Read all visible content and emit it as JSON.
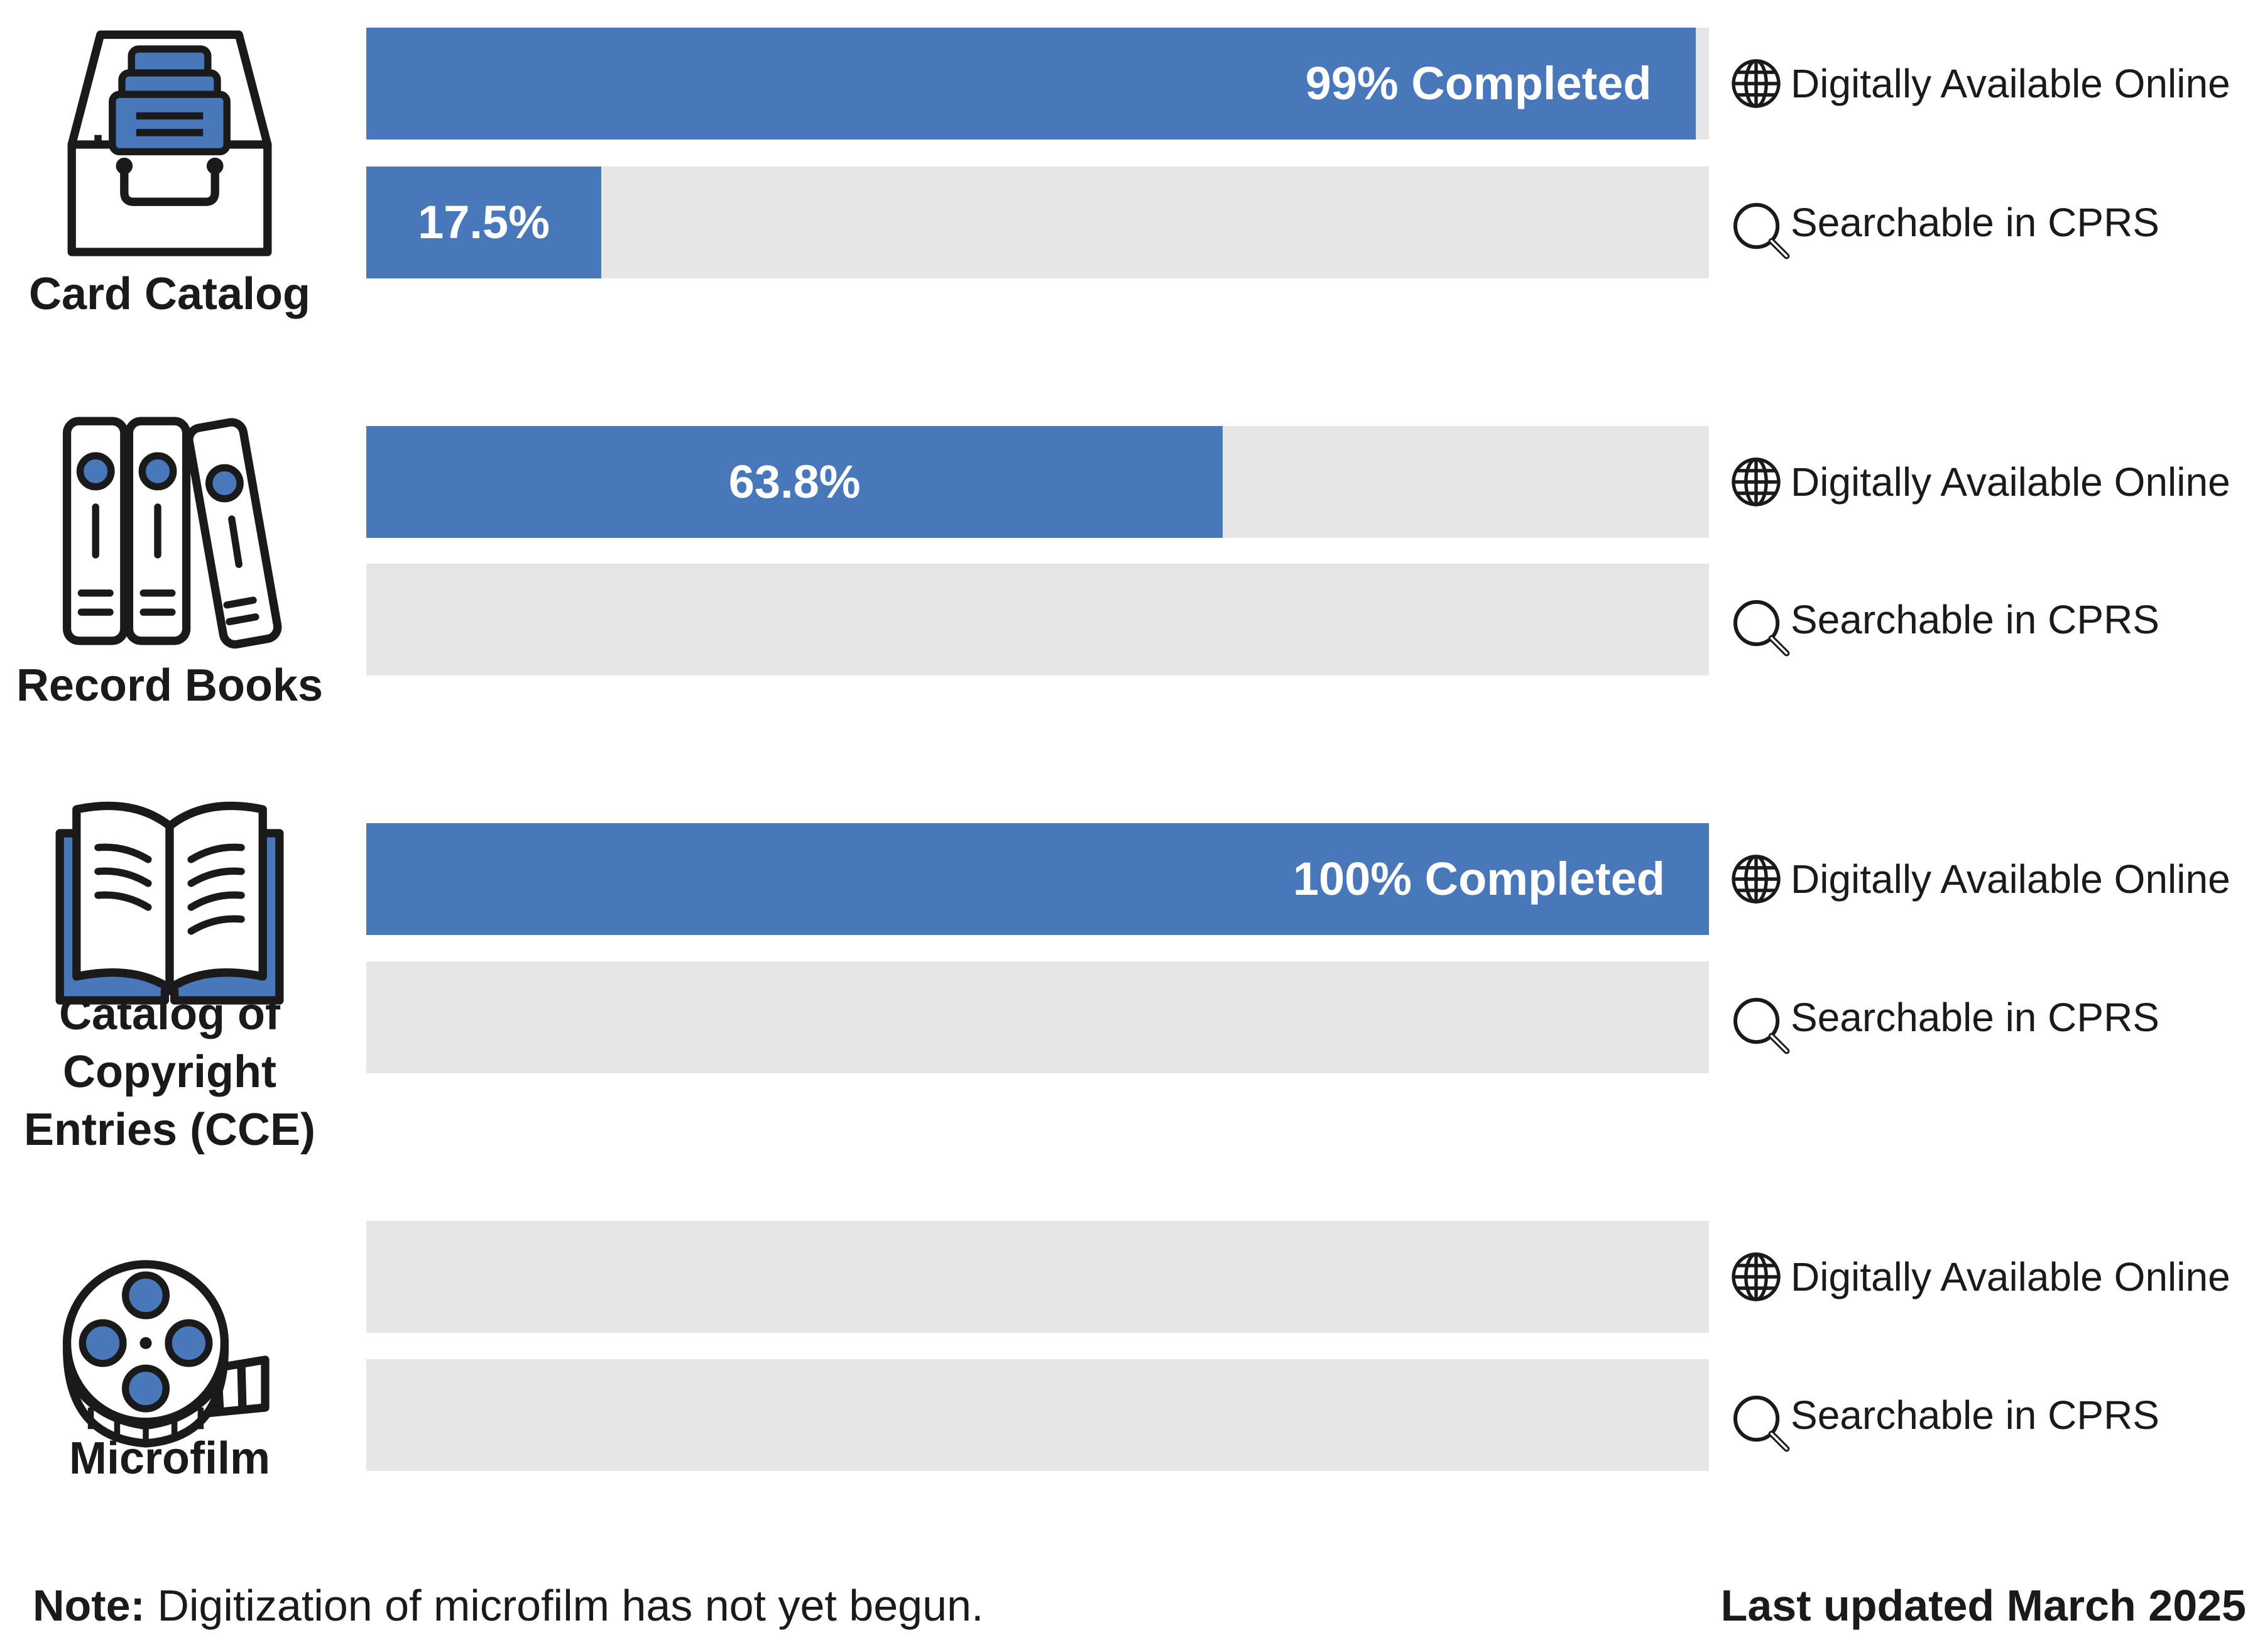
{
  "chart_data": {
    "type": "bar",
    "orientation": "horizontal",
    "xlim": [
      0,
      100
    ],
    "unit": "%",
    "categories": [
      "Card Catalog",
      "Record Books",
      "Catalog of Copyright Entries (CCE)",
      "Microfilm"
    ],
    "series": [
      {
        "name": "Digitally Available Online",
        "icon": "globe-icon",
        "values": [
          99,
          63.8,
          100,
          0
        ]
      },
      {
        "name": "Searchable in CPRS",
        "icon": "magnifier-icon",
        "values": [
          17.5,
          0,
          0,
          0
        ]
      }
    ],
    "bar_labels": {
      "Digitally Available Online": [
        "99% Completed",
        "63.8%",
        "100% Completed",
        ""
      ],
      "Searchable in CPRS": [
        "17.5%",
        "",
        "",
        ""
      ]
    },
    "legend_placement": "right of each bar",
    "grid": false
  },
  "groups": [
    {
      "label_lines": [
        "Card Catalog"
      ],
      "icon": "card-catalog-icon"
    },
    {
      "label_lines": [
        "Record Books"
      ],
      "icon": "record-books-icon"
    },
    {
      "label_lines": [
        "Catalog of",
        "Copyright",
        "Entries (CCE)"
      ],
      "icon": "open-book-icon"
    },
    {
      "label_lines": [
        "Microfilm"
      ],
      "icon": "film-reel-icon"
    }
  ],
  "footer": {
    "note_label": "Note:",
    "note_text": " Digitization of microfilm has not yet begun.",
    "updated": "Last updated March 2025"
  },
  "colors": {
    "fill": "#4878ba",
    "track": "#e6e6e6",
    "ink": "#1a1a1a",
    "bar_text": "#ffffff"
  }
}
